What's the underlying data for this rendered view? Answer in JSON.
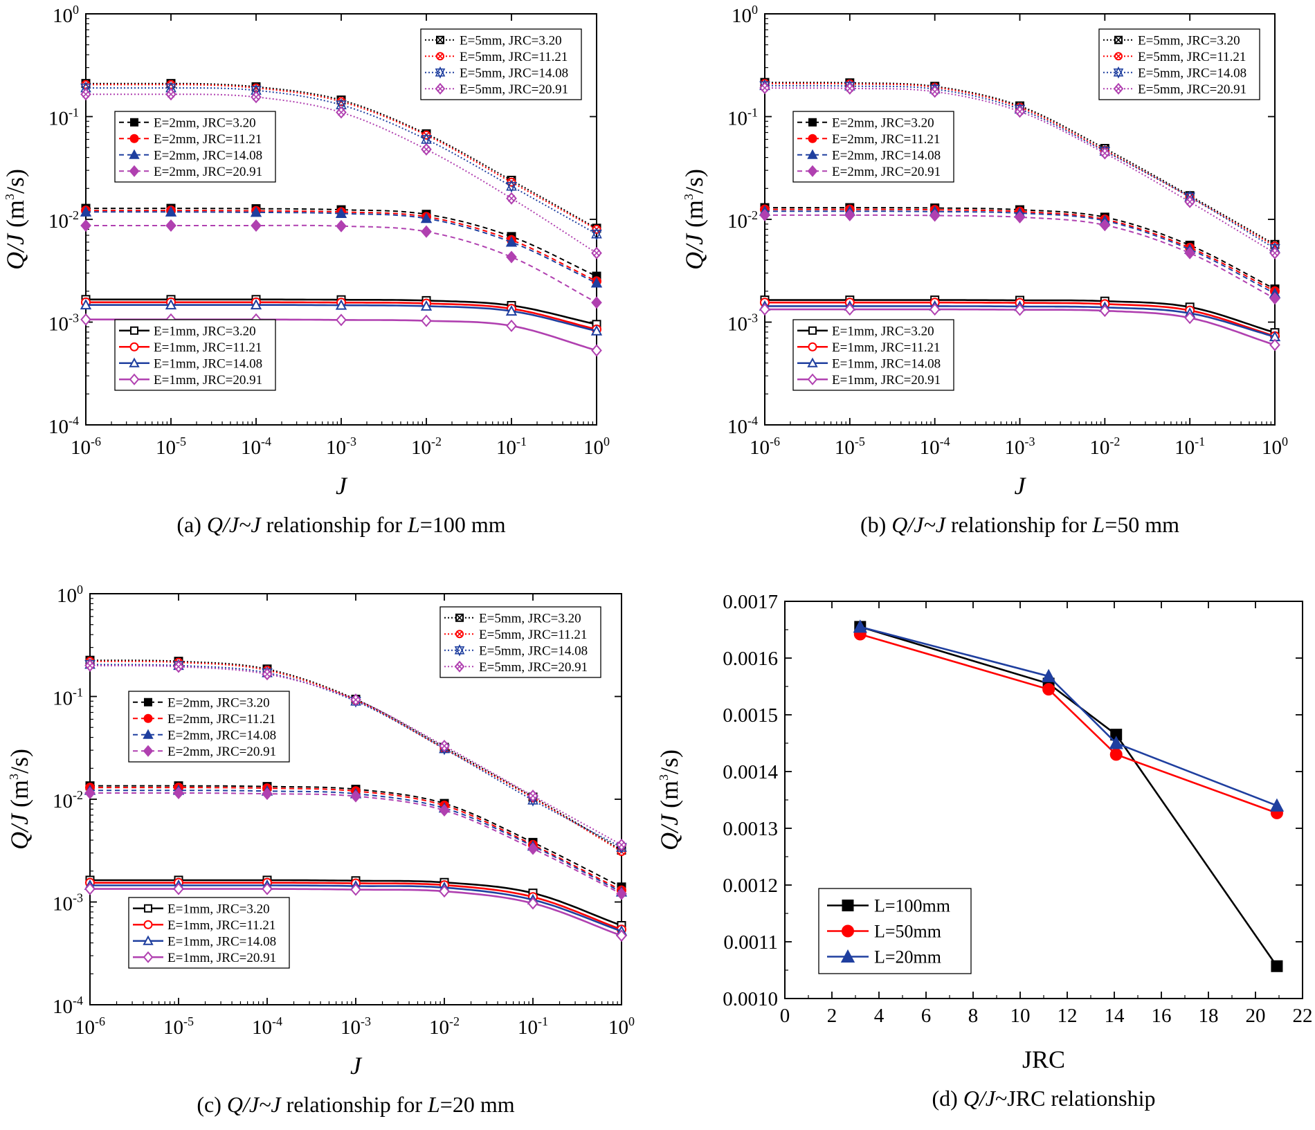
{
  "chart_data": [
    {
      "type": "line",
      "id": "a",
      "caption": {
        "prefix": "(a) ",
        "italic": "Q/J~J",
        "mid": " relationship for ",
        "italic2": "L",
        "suffix": "=100 mm"
      },
      "xlabel": "J",
      "ylabel": {
        "italic": "Q/J",
        "unit": " (m",
        "sup": "3",
        "end": "/s)"
      },
      "xscale": "log",
      "yscale": "log",
      "xlim_exp": [
        -6,
        0
      ],
      "ylim_exp": [
        -4,
        0
      ],
      "x": [
        1e-06,
        1e-05,
        0.0001,
        0.001,
        0.01,
        0.1,
        1
      ],
      "legend_entries": {
        "e5": [
          "E=5mm, JRC=3.20",
          "E=5mm, JRC=11.21",
          "E=5mm, JRC=14.08",
          "E=5mm, JRC=20.91"
        ],
        "e2": [
          "E=2mm, JRC=3.20",
          "E=2mm, JRC=11.21",
          "E=2mm, JRC=14.08",
          "E=2mm, JRC=20.91"
        ],
        "e1": [
          "E=1mm, JRC=3.20",
          "E=1mm, JRC=11.21",
          "E=1mm, JRC=14.08",
          "E=1mm, JRC=20.91"
        ]
      },
      "series": [
        {
          "group": "e5",
          "jrc": "3.20",
          "values": [
            0.21,
            0.21,
            0.195,
            0.145,
            0.068,
            0.024,
            0.0082
          ]
        },
        {
          "group": "e5",
          "jrc": "11.21",
          "values": [
            0.205,
            0.205,
            0.19,
            0.14,
            0.066,
            0.023,
            0.008
          ]
        },
        {
          "group": "e5",
          "jrc": "14.08",
          "values": [
            0.19,
            0.19,
            0.18,
            0.13,
            0.06,
            0.021,
            0.0072
          ]
        },
        {
          "group": "e5",
          "jrc": "20.91",
          "values": [
            0.165,
            0.165,
            0.155,
            0.11,
            0.048,
            0.016,
            0.0047
          ]
        },
        {
          "group": "e2",
          "jrc": "3.20",
          "values": [
            0.0128,
            0.0128,
            0.0127,
            0.0124,
            0.0112,
            0.0068,
            0.0028
          ]
        },
        {
          "group": "e2",
          "jrc": "11.21",
          "values": [
            0.0122,
            0.0122,
            0.0121,
            0.0118,
            0.0106,
            0.0063,
            0.0025
          ]
        },
        {
          "group": "e2",
          "jrc": "14.08",
          "values": [
            0.0118,
            0.0118,
            0.0117,
            0.0114,
            0.0102,
            0.006,
            0.0024
          ]
        },
        {
          "group": "e2",
          "jrc": "20.91",
          "values": [
            0.0087,
            0.0087,
            0.0087,
            0.0086,
            0.0076,
            0.0043,
            0.00155
          ]
        },
        {
          "group": "e1",
          "jrc": "3.20",
          "values": [
            0.00166,
            0.00166,
            0.00166,
            0.00165,
            0.00162,
            0.00145,
            0.00095
          ]
        },
        {
          "group": "e1",
          "jrc": "11.21",
          "values": [
            0.00156,
            0.00156,
            0.00156,
            0.00155,
            0.00152,
            0.00135,
            0.00085
          ]
        },
        {
          "group": "e1",
          "jrc": "14.08",
          "values": [
            0.00147,
            0.00147,
            0.00147,
            0.00146,
            0.00143,
            0.00128,
            0.00082
          ]
        },
        {
          "group": "e1",
          "jrc": "20.91",
          "values": [
            0.00106,
            0.00106,
            0.00106,
            0.00105,
            0.00103,
            0.00092,
            0.00053
          ]
        }
      ]
    },
    {
      "type": "line",
      "id": "b",
      "caption": {
        "prefix": "(b) ",
        "italic": "Q/J~J",
        "mid": " relationship for ",
        "italic2": "L",
        "suffix": "=50 mm"
      },
      "xlabel": "J",
      "ylabel": {
        "italic": "Q/J",
        "unit": " (m",
        "sup": "3",
        "end": "/s)"
      },
      "xscale": "log",
      "yscale": "log",
      "xlim_exp": [
        -6,
        0
      ],
      "ylim_exp": [
        -4,
        0
      ],
      "x": [
        1e-06,
        1e-05,
        0.0001,
        0.001,
        0.01,
        0.1,
        1
      ],
      "legend_entries": {
        "e5": [
          "E=5mm, JRC=3.20",
          "E=5mm, JRC=11.21",
          "E=5mm, JRC=14.08",
          "E=5mm, JRC=20.91"
        ],
        "e2": [
          "E=2mm, JRC=3.20",
          "E=2mm, JRC=11.21",
          "E=2mm, JRC=14.08",
          "E=2mm, JRC=20.91"
        ],
        "e1": [
          "E=1mm, JRC=3.20",
          "E=1mm, JRC=11.21",
          "E=1mm, JRC=14.08",
          "E=1mm, JRC=20.91"
        ]
      },
      "series": [
        {
          "group": "e5",
          "jrc": "3.20",
          "values": [
            0.215,
            0.213,
            0.197,
            0.127,
            0.049,
            0.017,
            0.0057
          ]
        },
        {
          "group": "e5",
          "jrc": "11.21",
          "values": [
            0.21,
            0.208,
            0.193,
            0.123,
            0.047,
            0.0165,
            0.0055
          ]
        },
        {
          "group": "e5",
          "jrc": "14.08",
          "values": [
            0.2,
            0.198,
            0.185,
            0.118,
            0.046,
            0.0165,
            0.0052
          ]
        },
        {
          "group": "e5",
          "jrc": "20.91",
          "values": [
            0.19,
            0.188,
            0.175,
            0.112,
            0.044,
            0.0148,
            0.0047
          ]
        },
        {
          "group": "e2",
          "jrc": "3.20",
          "values": [
            0.013,
            0.013,
            0.0129,
            0.0124,
            0.0105,
            0.0056,
            0.0021
          ]
        },
        {
          "group": "e2",
          "jrc": "11.21",
          "values": [
            0.0125,
            0.0125,
            0.0124,
            0.0119,
            0.01,
            0.0053,
            0.002
          ]
        },
        {
          "group": "e2",
          "jrc": "14.08",
          "values": [
            0.012,
            0.012,
            0.0119,
            0.0115,
            0.0097,
            0.0051,
            0.0019
          ]
        },
        {
          "group": "e2",
          "jrc": "20.91",
          "values": [
            0.011,
            0.011,
            0.0109,
            0.0105,
            0.0088,
            0.0047,
            0.0017
          ]
        },
        {
          "group": "e1",
          "jrc": "3.20",
          "values": [
            0.00164,
            0.00164,
            0.00164,
            0.00163,
            0.0016,
            0.0014,
            0.00079
          ]
        },
        {
          "group": "e1",
          "jrc": "11.21",
          "values": [
            0.00155,
            0.00155,
            0.00155,
            0.00154,
            0.0015,
            0.0013,
            0.00073
          ]
        },
        {
          "group": "e1",
          "jrc": "14.08",
          "values": [
            0.00143,
            0.00143,
            0.00143,
            0.00142,
            0.00139,
            0.00122,
            0.00072
          ]
        },
        {
          "group": "e1",
          "jrc": "20.91",
          "values": [
            0.00133,
            0.00133,
            0.00133,
            0.00132,
            0.00129,
            0.0011,
            0.0006
          ]
        }
      ]
    },
    {
      "type": "line",
      "id": "c",
      "caption": {
        "prefix": "(c) ",
        "italic": "Q/J~J",
        "mid": " relationship for ",
        "italic2": "L",
        "suffix": "=20 mm"
      },
      "xlabel": "J",
      "ylabel": {
        "italic": "Q/J",
        "unit": " (m",
        "sup": "3",
        "end": "/s)"
      },
      "xscale": "log",
      "yscale": "log",
      "xlim_exp": [
        -6,
        0
      ],
      "ylim_exp": [
        -4,
        0
      ],
      "x": [
        1e-06,
        1e-05,
        0.0001,
        0.001,
        0.01,
        0.1,
        1
      ],
      "legend_entries": {
        "e5": [
          "E=5mm, JRC=3.20",
          "E=5mm, JRC=11.21",
          "E=5mm, JRC=14.08",
          "E=5mm, JRC=20.91"
        ],
        "e2": [
          "E=2mm, JRC=3.20",
          "E=2mm, JRC=11.21",
          "E=2mm, JRC=14.08",
          "E=2mm, JRC=20.91"
        ],
        "e1": [
          "E=1mm, JRC=3.20",
          "E=1mm, JRC=11.21",
          "E=1mm, JRC=14.08",
          "E=1mm, JRC=20.91"
        ]
      },
      "series": [
        {
          "group": "e5",
          "jrc": "3.20",
          "values": [
            0.225,
            0.22,
            0.185,
            0.094,
            0.032,
            0.0105,
            0.0032
          ]
        },
        {
          "group": "e5",
          "jrc": "11.21",
          "values": [
            0.22,
            0.215,
            0.18,
            0.092,
            0.031,
            0.0103,
            0.0031
          ]
        },
        {
          "group": "e5",
          "jrc": "14.08",
          "values": [
            0.205,
            0.2,
            0.17,
            0.09,
            0.031,
            0.0098,
            0.0034
          ]
        },
        {
          "group": "e5",
          "jrc": "20.91",
          "values": [
            0.2,
            0.195,
            0.165,
            0.093,
            0.033,
            0.0108,
            0.0036
          ]
        },
        {
          "group": "e2",
          "jrc": "3.20",
          "values": [
            0.0135,
            0.0135,
            0.0133,
            0.0125,
            0.0091,
            0.0038,
            0.0014
          ]
        },
        {
          "group": "e2",
          "jrc": "11.21",
          "values": [
            0.013,
            0.013,
            0.0128,
            0.012,
            0.0087,
            0.0036,
            0.0013
          ]
        },
        {
          "group": "e2",
          "jrc": "14.08",
          "values": [
            0.0122,
            0.0122,
            0.012,
            0.0113,
            0.0082,
            0.0035,
            0.00125
          ]
        },
        {
          "group": "e2",
          "jrc": "20.91",
          "values": [
            0.0115,
            0.0115,
            0.0113,
            0.0107,
            0.0078,
            0.0033,
            0.0012
          ]
        },
        {
          "group": "e1",
          "jrc": "3.20",
          "values": [
            0.00163,
            0.00163,
            0.00163,
            0.00161,
            0.00155,
            0.00122,
            0.00059
          ]
        },
        {
          "group": "e1",
          "jrc": "11.21",
          "values": [
            0.00154,
            0.00154,
            0.00154,
            0.00152,
            0.00146,
            0.00112,
            0.00054
          ]
        },
        {
          "group": "e1",
          "jrc": "14.08",
          "values": [
            0.00145,
            0.00145,
            0.00145,
            0.00143,
            0.00138,
            0.00105,
            0.00052
          ]
        },
        {
          "group": "e1",
          "jrc": "20.91",
          "values": [
            0.00134,
            0.00134,
            0.00134,
            0.00132,
            0.00127,
            0.00097,
            0.00047
          ]
        }
      ]
    },
    {
      "type": "line",
      "id": "d",
      "caption": {
        "prefix": "(d) ",
        "italic": "Q/J",
        "suffix": "~JRC relationship"
      },
      "xlabel": "JRC",
      "ylabel": {
        "italic": "Q/J",
        "unit": " (m",
        "sup": "3",
        "end": "/s)"
      },
      "xlim": [
        0,
        22
      ],
      "ylim": [
        0.001,
        0.0017
      ],
      "xticks": [
        "0",
        "2",
        "4",
        "6",
        "8",
        "10",
        "12",
        "14",
        "16",
        "18",
        "20",
        "22"
      ],
      "yticks": [
        "0.0010",
        "0.0011",
        "0.0012",
        "0.0013",
        "0.0014",
        "0.0015",
        "0.0016",
        "0.0017"
      ],
      "x": [
        3.2,
        11.21,
        14.08,
        20.91
      ],
      "series": [
        {
          "name": "L=100mm",
          "color": "#000000",
          "marker": "square",
          "values": [
            0.001655,
            0.001555,
            0.001465,
            0.001057
          ]
        },
        {
          "name": "L=50mm",
          "color": "#ff0000",
          "marker": "circle",
          "values": [
            0.001642,
            0.001545,
            0.00143,
            0.001327
          ]
        },
        {
          "name": "L=20mm",
          "color": "#1f3f9f",
          "marker": "triangle",
          "values": [
            0.001655,
            0.001568,
            0.00145,
            0.00134
          ]
        }
      ]
    }
  ],
  "series_colors": [
    "#000000",
    "#ff0000",
    "#1f3f9f",
    "#b040b0"
  ],
  "log_tick_base": "10",
  "log_tick_exps": [
    "-6",
    "-5",
    "-4",
    "-3",
    "-2",
    "-1",
    "0"
  ],
  "log_ytick_exps": [
    "-4",
    "-3",
    "-2",
    "-1",
    "0"
  ]
}
